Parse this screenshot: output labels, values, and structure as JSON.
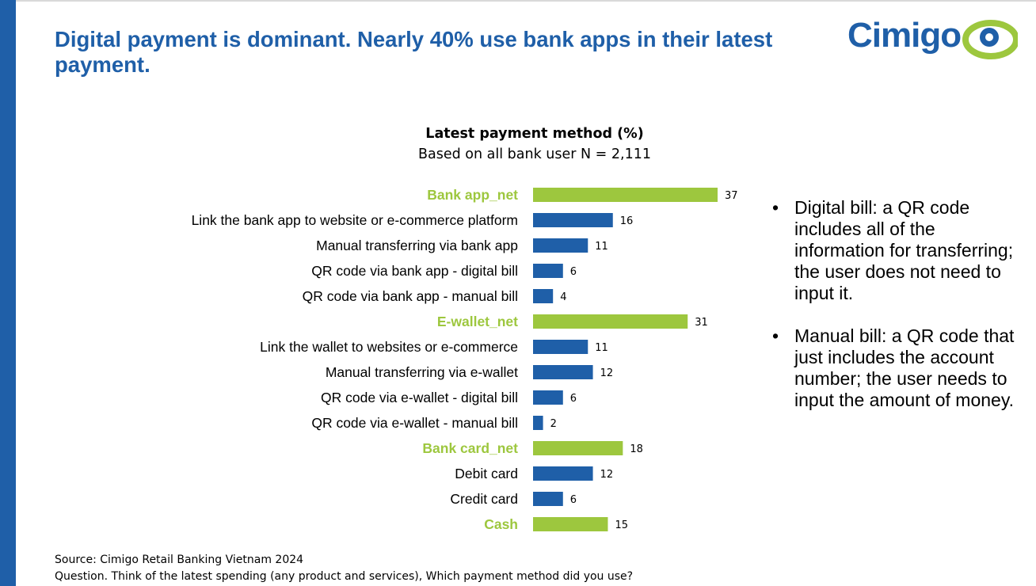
{
  "page": {
    "title": "Digital payment is dominant. Nearly 40% use bank apps in their latest payment.",
    "logo_text": "Cimigo"
  },
  "notes": [
    "Digital bill: a QR code includes all of the information for transferring; the user does not need to input it.",
    "Manual bill: a QR code that just includes the account number; the user needs to input the amount of money."
  ],
  "source": {
    "line1": "Source: Cimigo Retail Banking Vietnam 2024",
    "line2": "Question. Think of the latest spending (any product and services), Which payment method did you use?"
  },
  "colors": {
    "brand_blue": "#1f5fa8",
    "net_green": "#9dc73e",
    "bar_blue": "#1f5fa8"
  },
  "chart_data": {
    "type": "bar",
    "orientation": "horizontal",
    "title": "Latest payment method (%)",
    "subtitle": "Based on all bank user N = 2,111",
    "xlabel": "",
    "ylabel": "",
    "xlim": [
      0,
      37
    ],
    "grid": false,
    "categories": [
      "Bank app_net",
      "Link the bank app to website or e-commerce platform",
      "Manual transferring via bank app",
      "QR code via bank app - digital bill",
      "QR code via bank app - manual bill",
      "E-wallet_net",
      "Link the wallet to websites or e-commerce",
      "Manual transferring via e-wallet",
      "QR code via e-wallet - digital bill",
      "QR code via e-wallet - manual bill",
      "Bank card_net",
      "Debit card",
      "Credit card",
      "Cash"
    ],
    "values": [
      37,
      16,
      11,
      6,
      4,
      31,
      11,
      12,
      6,
      2,
      18,
      12,
      6,
      15
    ],
    "is_net": [
      true,
      false,
      false,
      false,
      false,
      true,
      false,
      false,
      false,
      false,
      true,
      false,
      false,
      true
    ]
  }
}
